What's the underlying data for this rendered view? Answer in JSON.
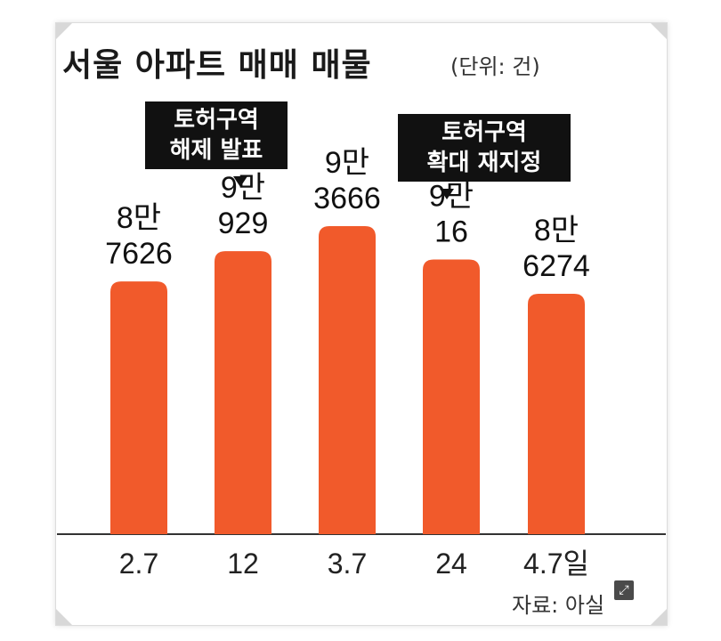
{
  "title": "서울 아파트 매매 매물",
  "unit": "(단위: 건)",
  "source": "자료: 아실",
  "colors": {
    "bar": "#f15a2b",
    "callout_bg": "#111111",
    "axis": "#333333"
  },
  "expand_icon": "expand-icon",
  "callouts": [
    {
      "lines": [
        "토허구역",
        "해제 발표"
      ]
    },
    {
      "lines": [
        "토허구역",
        "확대 재지정"
      ]
    }
  ],
  "chart_data": {
    "type": "bar",
    "title": "서울 아파트 매매 매물",
    "categories": [
      "2.7",
      "12",
      "3.7",
      "24",
      "4.7일"
    ],
    "values": [
      87626,
      90929,
      93666,
      90016,
      86274
    ],
    "value_labels": [
      [
        "8만",
        "7626"
      ],
      [
        "9만",
        "929"
      ],
      [
        "9만",
        "3666"
      ],
      [
        "9만",
        "16"
      ],
      [
        "8만",
        "6274"
      ]
    ],
    "ylim": [
      60000,
      96000
    ],
    "grid": false,
    "legend": "none"
  }
}
